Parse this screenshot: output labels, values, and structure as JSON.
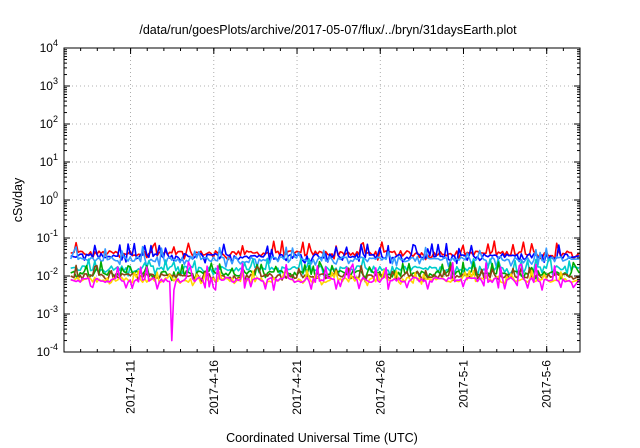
{
  "chart_data": {
    "type": "line",
    "title": "/data/run/goesPlots/archive/2017-05-07/flux/../bryn/31daysEarth.plot",
    "xlabel": "Coordinated Universal Time (UTC)",
    "ylabel": "cSv/day",
    "y_scale": "log",
    "ylim": [
      0.0001,
      10000
    ],
    "xlim": [
      "2017-04-07",
      "2017-05-08"
    ],
    "grid": true,
    "legend": "none",
    "y_ticks": [
      {
        "base": "10",
        "exp": "-4"
      },
      {
        "base": "10",
        "exp": "-3"
      },
      {
        "base": "10",
        "exp": "-2"
      },
      {
        "base": "10",
        "exp": "-1"
      },
      {
        "base": "10",
        "exp": "0"
      },
      {
        "base": "10",
        "exp": "1"
      },
      {
        "base": "10",
        "exp": "2"
      },
      {
        "base": "10",
        "exp": "3"
      },
      {
        "base": "10",
        "exp": "4"
      }
    ],
    "x_ticks": [
      "2017-4-11",
      "2017-4-16",
      "2017-4-21",
      "2017-4-26",
      "2017-5-1",
      "2017-5-6"
    ],
    "series": [
      {
        "color": "#ff0000",
        "base": 0.04,
        "spike": 0.07,
        "dip": 0.03
      },
      {
        "color": "#0000ff",
        "base": 0.034,
        "spike": 0.06,
        "dip": 0.025
      },
      {
        "color": "#3399ff",
        "base": 0.028,
        "spike": 0.05,
        "dip": 0.02
      },
      {
        "color": "#00cccc",
        "base": 0.016,
        "spike": 0.025,
        "dip": 0.012
      },
      {
        "color": "#00aa00",
        "base": 0.012,
        "spike": 0.02,
        "dip": 0.009
      },
      {
        "color": "#8b4513",
        "base": 0.01,
        "spike": 0.016,
        "dip": 0.008
      },
      {
        "color": "#ffd700",
        "base": 0.008,
        "spike": 0.012,
        "dip": 0.0065
      },
      {
        "color": "#ff00ff",
        "base": 0.008,
        "spike": 0.02,
        "dip": 0.005,
        "min_date": "2017-04-13T12:00",
        "min_value": 0.0002
      }
    ]
  }
}
